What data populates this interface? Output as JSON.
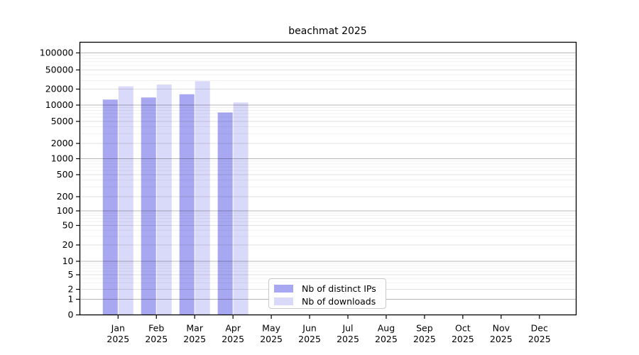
{
  "chart_data": {
    "type": "bar",
    "title": "beachmat 2025",
    "x": [
      "Jan 2025",
      "Feb 2025",
      "Mar 2025",
      "Apr 2025",
      "May 2025",
      "Jun 2025",
      "Jul 2025",
      "Aug 2025",
      "Sep 2025",
      "Oct 2025",
      "Nov 2025",
      "Dec 2025"
    ],
    "x_tick_labels": [
      {
        "month": "Jan",
        "year": "2025"
      },
      {
        "month": "Feb",
        "year": "2025"
      },
      {
        "month": "Mar",
        "year": "2025"
      },
      {
        "month": "Apr",
        "year": "2025"
      },
      {
        "month": "May",
        "year": "2025"
      },
      {
        "month": "Jun",
        "year": "2025"
      },
      {
        "month": "Jul",
        "year": "2025"
      },
      {
        "month": "Aug",
        "year": "2025"
      },
      {
        "month": "Sep",
        "year": "2025"
      },
      {
        "month": "Oct",
        "year": "2025"
      },
      {
        "month": "Nov",
        "year": "2025"
      },
      {
        "month": "Dec",
        "year": "2025"
      }
    ],
    "series": [
      {
        "name": "Nb of distinct IPs",
        "color": "#a8a8f2",
        "values": [
          12700,
          13900,
          16000,
          7300,
          null,
          null,
          null,
          null,
          null,
          null,
          null,
          null
        ]
      },
      {
        "name": "Nb of downloads",
        "color": "#d9d9fa",
        "values": [
          22800,
          24900,
          29200,
          11200,
          null,
          null,
          null,
          null,
          null,
          null,
          null,
          null
        ]
      }
    ],
    "y_axis": {
      "scale": "log-like with zero baseline",
      "tick_values": [
        0,
        1,
        2,
        5,
        10,
        20,
        50,
        100,
        200,
        500,
        1000,
        2000,
        5000,
        10000,
        20000,
        50000,
        100000
      ],
      "tick_labels": [
        "0",
        "1",
        "2",
        "5",
        "10",
        "20",
        "50",
        "100",
        "200",
        "500",
        "1000",
        "2000",
        "5000",
        "10000",
        "20000",
        "50000",
        "100000"
      ]
    },
    "legend": {
      "entries": [
        "Nb of distinct IPs",
        "Nb of downloads"
      ],
      "position": "lower center-left"
    },
    "grid": "horizontal major + log minor",
    "colors": {
      "axis": "#000000",
      "background": "#ffffff"
    }
  }
}
